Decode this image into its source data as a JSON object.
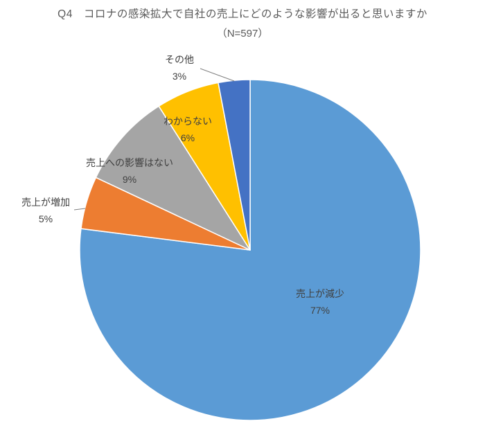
{
  "chart_data": {
    "type": "pie",
    "title": "Q4　コロナの感染拡大で自社の売上にどのような影響が出ると思いますか",
    "subtitle": "（N=597）",
    "n_label": "N=597",
    "direction": "clockwise",
    "start_angle_deg": 0,
    "legend_position": "none",
    "background_color": "#ffffff",
    "title_color": "#595959",
    "label_color": "#404040",
    "slices": [
      {
        "label": "売上が減少",
        "value": 77,
        "display": "77%",
        "color": "#5b9bd5"
      },
      {
        "label": "売上が増加",
        "value": 5,
        "display": "5%",
        "color": "#ed7d31"
      },
      {
        "label": "売上への影響はない",
        "value": 9,
        "display": "9%",
        "color": "#a5a5a5"
      },
      {
        "label": "わからない",
        "value": 6,
        "display": "6%",
        "color": "#ffc000"
      },
      {
        "label": "その他",
        "value": 3,
        "display": "3%",
        "color": "#4472c4"
      }
    ]
  }
}
